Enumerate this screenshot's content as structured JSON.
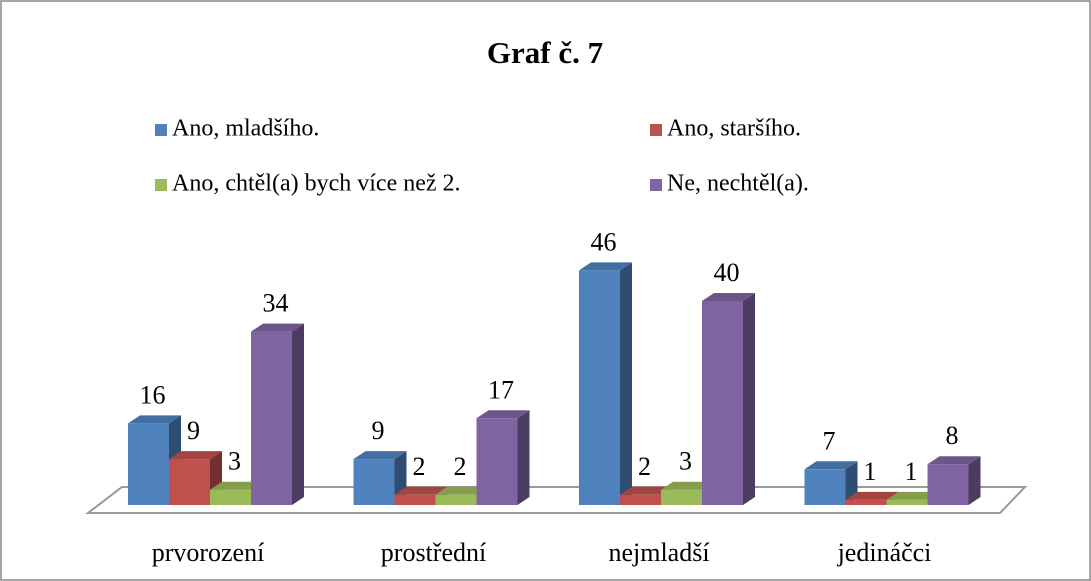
{
  "chart_data": {
    "type": "bar3d",
    "title": "Graf č. 7",
    "categories": [
      "prvorození",
      "prostřední",
      "nejmladší",
      "jedináčci"
    ],
    "series": [
      {
        "name": "Ano, mladšího.",
        "color": "#4f81bd",
        "values": [
          16,
          9,
          46,
          7
        ]
      },
      {
        "name": "Ano, staršího.",
        "color": "#c0504d",
        "values": [
          9,
          2,
          2,
          1
        ]
      },
      {
        "name": "Ano, chtěl(a) bych více než 2.",
        "color": "#9bbb59",
        "values": [
          3,
          2,
          3,
          1
        ]
      },
      {
        "name": "Ne, nechtěl(a).",
        "color": "#8064a2",
        "values": [
          34,
          17,
          40,
          8
        ]
      }
    ]
  }
}
